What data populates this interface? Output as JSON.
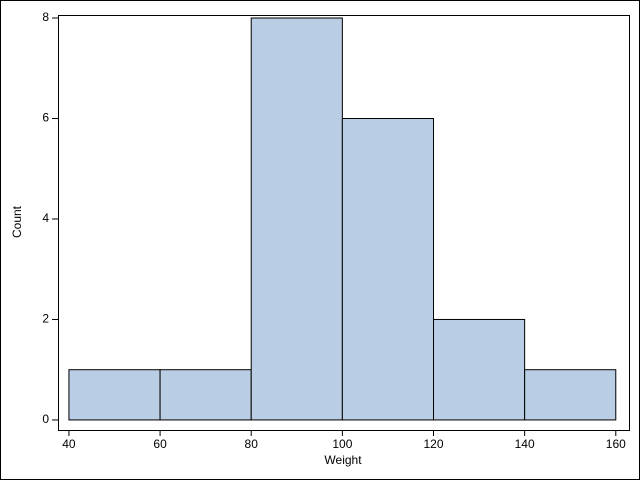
{
  "chart_data": {
    "type": "histogram",
    "bins": [
      40,
      60,
      80,
      100,
      120,
      140,
      160
    ],
    "values": [
      1,
      1,
      8,
      6,
      2,
      1
    ],
    "color": "#b9cde5",
    "xlabel": "Weight",
    "ylabel": "Count",
    "xlim": [
      37.6,
      162.9
    ],
    "ylim": [
      -0.2,
      8.06
    ],
    "xticks": [
      40,
      60,
      80,
      100,
      120,
      140,
      160
    ],
    "yticks": [
      0,
      2,
      4,
      6,
      8
    ]
  }
}
